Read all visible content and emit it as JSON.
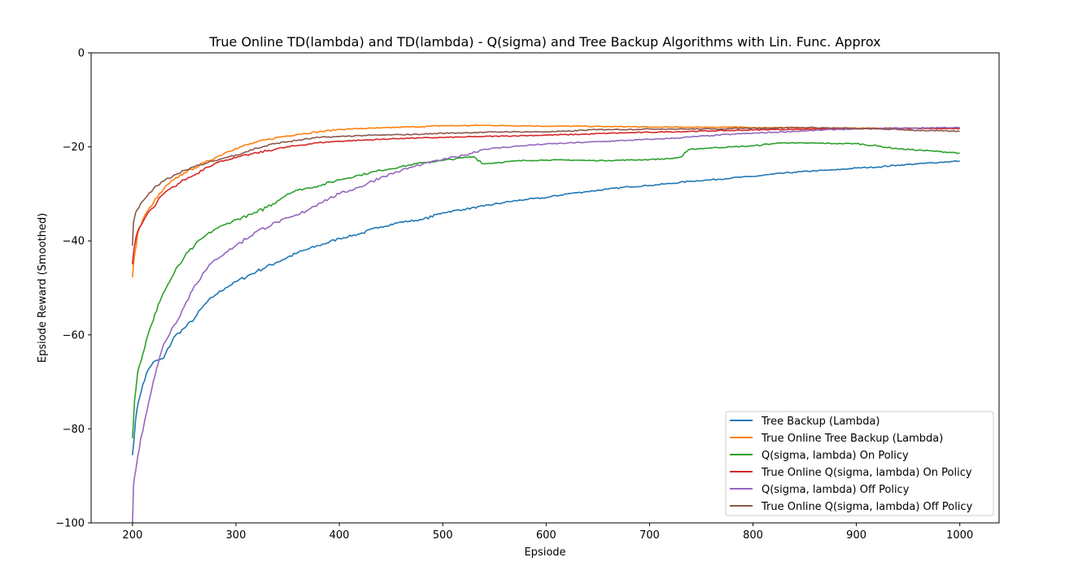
{
  "chart_data": {
    "type": "line",
    "title": "True Online TD(lambda) and TD(lambda) - Q(sigma) and Tree Backup Algorithms with Lin. Func. Approx",
    "xlabel": "Epsiode",
    "ylabel": "Epsiode Reward (Smoothed)",
    "xlim": [
      160,
      1038
    ],
    "ylim": [
      -100,
      0
    ],
    "xticks": [
      200,
      300,
      400,
      500,
      600,
      700,
      800,
      900,
      1000
    ],
    "yticks": [
      -100,
      -80,
      -60,
      -40,
      -20,
      0
    ],
    "ytick_labels": [
      "−100",
      "−80",
      "−60",
      "−40",
      "−20",
      "0"
    ],
    "grid": false,
    "legend_position": "bottom-right",
    "series": [
      {
        "name": "Tree Backup (Lambda)",
        "color": "#1f77b4",
        "x": [
          200,
          203,
          206,
          210,
          215,
          220,
          230,
          240,
          250,
          260,
          270,
          280,
          290,
          300,
          320,
          340,
          360,
          380,
          400,
          420,
          440,
          460,
          480,
          500,
          520,
          540,
          560,
          580,
          600,
          620,
          640,
          660,
          680,
          700,
          720,
          740,
          760,
          780,
          800,
          820,
          840,
          860,
          880,
          900,
          920,
          940,
          960,
          980,
          1000
        ],
        "y": [
          -85.6,
          -78,
          -74,
          -70.5,
          -67.5,
          -65.8,
          -65,
          -60.5,
          -58.6,
          -56.5,
          -53.5,
          -51.5,
          -50,
          -48.7,
          -46.5,
          -44.5,
          -42.5,
          -41,
          -39.5,
          -38.5,
          -37,
          -36,
          -35.5,
          -34,
          -33.3,
          -32.6,
          -31.8,
          -31.2,
          -30.8,
          -30,
          -29.5,
          -29,
          -28.5,
          -28.2,
          -27.8,
          -27.3,
          -27,
          -26.6,
          -26.3,
          -25.8,
          -25.4,
          -25.1,
          -24.9,
          -24.5,
          -24.3,
          -23.9,
          -23.6,
          -23.3,
          -23
        ]
      },
      {
        "name": "True Online Tree Backup (Lambda)",
        "color": "#ff7f0e",
        "x": [
          200,
          202,
          205,
          210,
          215,
          220,
          230,
          240,
          250,
          260,
          270,
          280,
          290,
          300,
          320,
          340,
          360,
          380,
          400,
          420,
          440,
          460,
          480,
          500,
          520,
          540,
          560,
          580,
          600,
          620,
          640,
          660,
          680,
          700,
          720,
          740,
          760,
          780,
          800,
          820,
          840,
          860,
          880,
          900,
          920,
          940,
          960,
          980,
          1000
        ],
        "y": [
          -47.8,
          -43,
          -38.5,
          -35.5,
          -33.5,
          -32,
          -29,
          -27,
          -25.5,
          -24.5,
          -23.3,
          -22.3,
          -21.2,
          -20.3,
          -19,
          -18,
          -17.3,
          -16.8,
          -16.3,
          -16.1,
          -16,
          -15.8,
          -15.7,
          -15.5,
          -15.5,
          -15.4,
          -15.5,
          -15.5,
          -15.6,
          -15.6,
          -15.6,
          -15.7,
          -15.7,
          -15.8,
          -15.8,
          -15.8,
          -15.8,
          -15.8,
          -15.9,
          -15.9,
          -15.9,
          -16,
          -16,
          -16,
          -16,
          -16,
          -16,
          -16,
          -16
        ]
      },
      {
        "name": "Q(sigma, lambda) On Policy",
        "color": "#2ca02c",
        "x": [
          200,
          202,
          205,
          210,
          215,
          220,
          225,
          230,
          240,
          250,
          260,
          270,
          280,
          290,
          300,
          320,
          340,
          350,
          360,
          380,
          400,
          420,
          440,
          460,
          480,
          500,
          520,
          530,
          540,
          560,
          580,
          600,
          620,
          640,
          660,
          680,
          700,
          720,
          730,
          740,
          760,
          780,
          800,
          820,
          830,
          840,
          860,
          880,
          900,
          920,
          940,
          960,
          980,
          1000
        ],
        "y": [
          -82,
          -74,
          -68,
          -64,
          -60,
          -57,
          -53.5,
          -51,
          -47,
          -43.5,
          -41,
          -39,
          -37.5,
          -36.5,
          -35.5,
          -34,
          -31.5,
          -30,
          -29.2,
          -28.3,
          -27,
          -26,
          -25,
          -24.2,
          -23.4,
          -22.9,
          -22.3,
          -22.1,
          -23.6,
          -23.2,
          -22.9,
          -22.8,
          -22.8,
          -22.9,
          -22.9,
          -22.8,
          -22.7,
          -22.5,
          -22.2,
          -20.5,
          -20.2,
          -20,
          -19.8,
          -19.3,
          -19.1,
          -19.2,
          -19.2,
          -19.3,
          -19.3,
          -19.8,
          -20.4,
          -20.7,
          -21,
          -21.3
        ]
      },
      {
        "name": "True Online Q(sigma, lambda) On Policy",
        "color": "#d62728",
        "x": [
          200,
          202,
          205,
          210,
          215,
          220,
          230,
          240,
          250,
          260,
          270,
          280,
          290,
          300,
          320,
          340,
          360,
          380,
          400,
          420,
          440,
          460,
          480,
          500,
          520,
          540,
          560,
          580,
          600,
          620,
          640,
          660,
          680,
          700,
          720,
          740,
          760,
          780,
          800,
          820,
          840,
          860,
          880,
          900,
          920,
          940,
          960,
          980,
          1000
        ],
        "y": [
          -45,
          -41,
          -38,
          -36,
          -34,
          -33,
          -30,
          -28.5,
          -27,
          -26,
          -24.5,
          -23.5,
          -22.8,
          -22.3,
          -21.3,
          -20.4,
          -19.7,
          -19.1,
          -18.8,
          -18.6,
          -18.4,
          -18.2,
          -18.1,
          -18,
          -17.9,
          -17.8,
          -17.7,
          -17.6,
          -17.5,
          -17.4,
          -17.3,
          -17.1,
          -17,
          -16.9,
          -16.8,
          -16.7,
          -16.6,
          -16.5,
          -16.4,
          -16.3,
          -16.3,
          -16.2,
          -16.2,
          -16.2,
          -16.1,
          -16.1,
          -16.1,
          -16.1,
          -16.1
        ]
      },
      {
        "name": "Q(sigma, lambda) Off Policy",
        "color": "#9467bd",
        "x": [
          200,
          201,
          203,
          205,
          208,
          212,
          216,
          220,
          225,
          230,
          240,
          250,
          260,
          270,
          280,
          290,
          300,
          320,
          340,
          360,
          380,
          400,
          420,
          440,
          460,
          480,
          500,
          520,
          540,
          560,
          580,
          600,
          620,
          640,
          660,
          680,
          700,
          720,
          740,
          760,
          780,
          800,
          820,
          840,
          860,
          880,
          900,
          920,
          940,
          960,
          980,
          1000
        ],
        "y": [
          -100,
          -92,
          -89,
          -86,
          -82,
          -78,
          -74,
          -70,
          -66,
          -62,
          -58,
          -54,
          -49.5,
          -46.5,
          -44,
          -42.5,
          -41,
          -38,
          -36,
          -34.5,
          -32,
          -30,
          -28.5,
          -26.5,
          -25,
          -23.7,
          -22.7,
          -21.8,
          -20.5,
          -20.1,
          -19.7,
          -19.4,
          -19.2,
          -19,
          -18.8,
          -18.6,
          -18.4,
          -18.2,
          -17.9,
          -17.6,
          -17.3,
          -17.1,
          -16.9,
          -16.7,
          -16.5,
          -16.3,
          -16.2,
          -16.1,
          -16,
          -16,
          -15.9,
          -15.9
        ]
      },
      {
        "name": "True Online Q(sigma, lambda) Off Policy",
        "color": "#8c564b",
        "x": [
          200,
          201,
          203,
          206,
          210,
          215,
          220,
          230,
          240,
          250,
          260,
          270,
          280,
          290,
          300,
          320,
          340,
          360,
          380,
          400,
          420,
          440,
          460,
          480,
          500,
          520,
          540,
          560,
          580,
          600,
          620,
          640,
          660,
          680,
          700,
          720,
          740,
          760,
          780,
          800,
          820,
          840,
          860,
          880,
          900,
          920,
          940,
          960,
          980,
          1000
        ],
        "y": [
          -41,
          -36,
          -34,
          -33,
          -31.5,
          -30.2,
          -29,
          -27.3,
          -26,
          -25,
          -24.2,
          -23.6,
          -22.9,
          -22.3,
          -21.7,
          -20.3,
          -19.2,
          -18.6,
          -18,
          -17.8,
          -17.6,
          -17.5,
          -17.4,
          -17.3,
          -17.1,
          -17,
          -16.9,
          -16.8,
          -16.8,
          -16.8,
          -16.7,
          -16.4,
          -16.3,
          -16.3,
          -16.2,
          -16.2,
          -16.2,
          -16.2,
          -16.1,
          -16,
          -16,
          -15.9,
          -15.9,
          -16,
          -16.1,
          -16.2,
          -16.3,
          -16.5,
          -16.6,
          -16.7
        ]
      }
    ]
  }
}
